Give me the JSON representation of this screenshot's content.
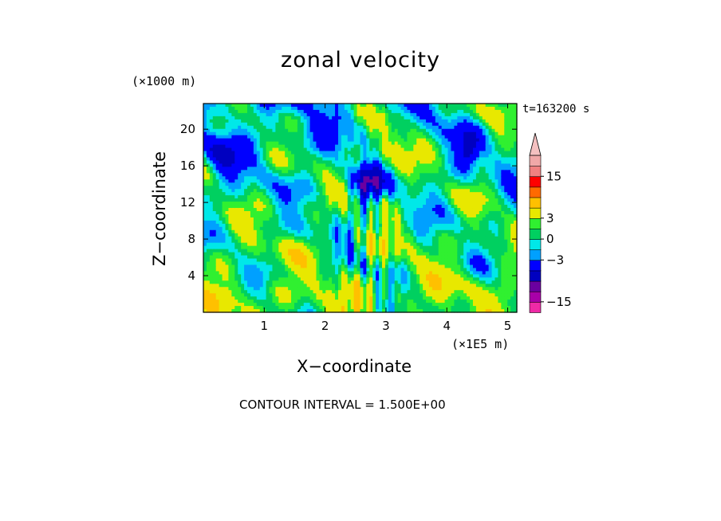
{
  "chart_data": {
    "type": "heatmap",
    "title": "zonal velocity",
    "xlabel": "X−coordinate",
    "ylabel": "Z−coordinate",
    "x_unit_label": "(×1E5 m)",
    "y_unit_label": "(×1000 m)",
    "time_label": "t=163200 s",
    "contour_interval_label": "CONTOUR INTERVAL = 1.500E+00",
    "xlim": [
      0,
      5.15
    ],
    "ylim": [
      0,
      22.8
    ],
    "x_ticks": [
      1,
      2,
      3,
      4,
      5
    ],
    "y_ticks": [
      4,
      8,
      12,
      16,
      20
    ],
    "colorbar": {
      "levels": [
        -18,
        -15,
        -12,
        -9,
        -6,
        -3,
        -1.5,
        0,
        1.5,
        3,
        6,
        9,
        12,
        15,
        18
      ],
      "tick_labels": [
        {
          "value": 15,
          "label": "15"
        },
        {
          "value": 3,
          "label": "3"
        },
        {
          "value": 0,
          "label": "0"
        },
        {
          "value": -3,
          "label": "−3"
        },
        {
          "value": -15,
          "label": "−15"
        }
      ],
      "colors": [
        "#ee2aa6",
        "#a800a8",
        "#6a00a0",
        "#0000c0",
        "#0000ff",
        "#00a0ff",
        "#00e8e8",
        "#00d060",
        "#30f030",
        "#e8e800",
        "#ffc000",
        "#ff6a00",
        "#ff0000",
        "#f08080",
        "#f0a8a8"
      ],
      "over_color": "#f4c0c0",
      "placement": "right"
    },
    "field_description_values": {
      "background_lower_right": 1.0,
      "background_upper_left": -1.0,
      "jet_core_center": [
        2.7,
        14
      ],
      "jet_core_value": -8
    }
  }
}
